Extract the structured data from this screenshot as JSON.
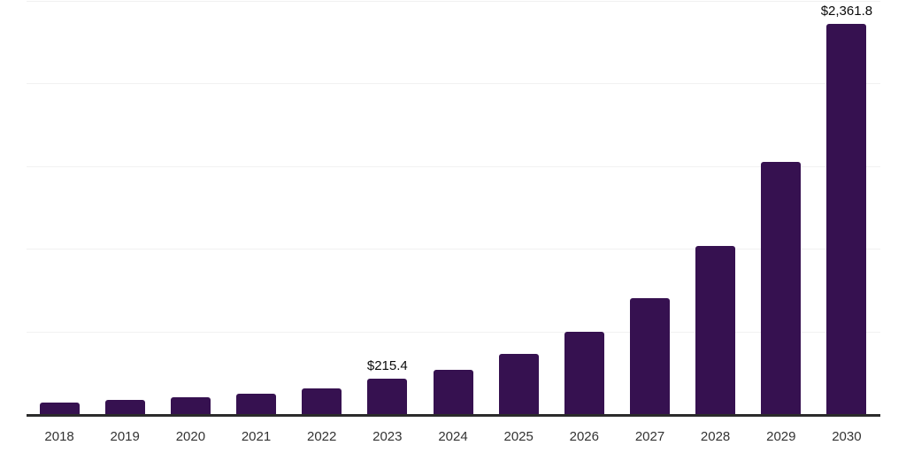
{
  "chart_data": {
    "type": "bar",
    "title": "",
    "xlabel": "",
    "ylabel": "",
    "categories": [
      "2018",
      "2019",
      "2020",
      "2021",
      "2022",
      "2023",
      "2024",
      "2025",
      "2026",
      "2027",
      "2028",
      "2029",
      "2030"
    ],
    "values": [
      69,
      85,
      101,
      123,
      155,
      215.4,
      267,
      362,
      498,
      700,
      1020,
      1528,
      2361.8
    ],
    "data_labels": [
      "",
      "",
      "",
      "",
      "",
      "$215.4",
      "",
      "",
      "",
      "",
      "",
      "",
      "$2,361.8"
    ],
    "ylim": [
      0,
      2500
    ],
    "gridline_interval": 500,
    "grid": "horizontal",
    "legend_position": "none"
  },
  "colors": {
    "background": "#FFFFFF",
    "bar": "#361150",
    "axis": "#2B2B2B",
    "gridline": "#F1F1F1",
    "tick_label": "#333333",
    "data_label": "#0A0A0A"
  }
}
